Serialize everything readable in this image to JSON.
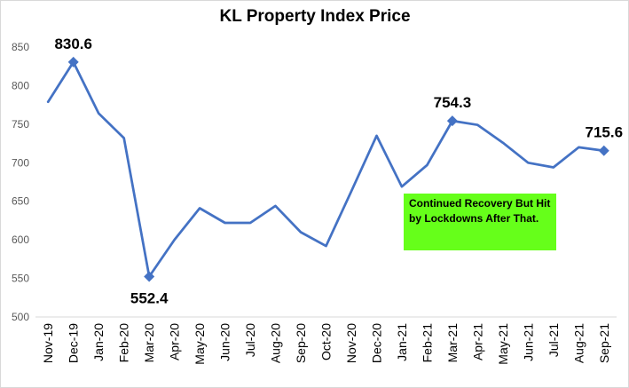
{
  "chart_data": {
    "type": "line",
    "title": "KL Property Index Price",
    "xlabel": "",
    "ylabel": "",
    "ylim": [
      500,
      850
    ],
    "yticks": [
      "500",
      "550",
      "600",
      "650",
      "700",
      "750",
      "800",
      "850"
    ],
    "categories": [
      "Nov-19",
      "Dec-19",
      "Jan-20",
      "Feb-20",
      "Mar-20",
      "Apr-20",
      "May-20",
      "Jun-20",
      "Jul-20",
      "Aug-20",
      "Sep-20",
      "Oct-20",
      "Nov-20",
      "Dec-20",
      "Jan-21",
      "Feb-21",
      "Mar-21",
      "Apr-21",
      "May-21",
      "Jun-21",
      "Jul-21",
      "Aug-21",
      "Sep-21"
    ],
    "series": [
      {
        "name": "KL Property Index Price",
        "color": "#4472c4",
        "values": [
          779,
          830.6,
          764,
          732,
          552.4,
          600,
          641,
          622,
          622,
          644,
          610,
          592,
          663,
          735,
          669,
          697,
          754.3,
          749,
          726,
          700,
          694,
          720,
          715.6
        ]
      }
    ],
    "data_labels": [
      {
        "index": 1,
        "text": "830.6",
        "placement": "above"
      },
      {
        "index": 4,
        "text": "552.4",
        "placement": "below"
      },
      {
        "index": 16,
        "text": "754.3",
        "placement": "above"
      },
      {
        "index": 22,
        "text": "715.6",
        "placement": "above"
      }
    ],
    "marker_indices": [
      1,
      4,
      16,
      22
    ],
    "annotation": {
      "text": "Continued Recovery But Hit by Lockdowns After That.",
      "background": "#66ff1a"
    },
    "grid": false,
    "legend": "none"
  }
}
